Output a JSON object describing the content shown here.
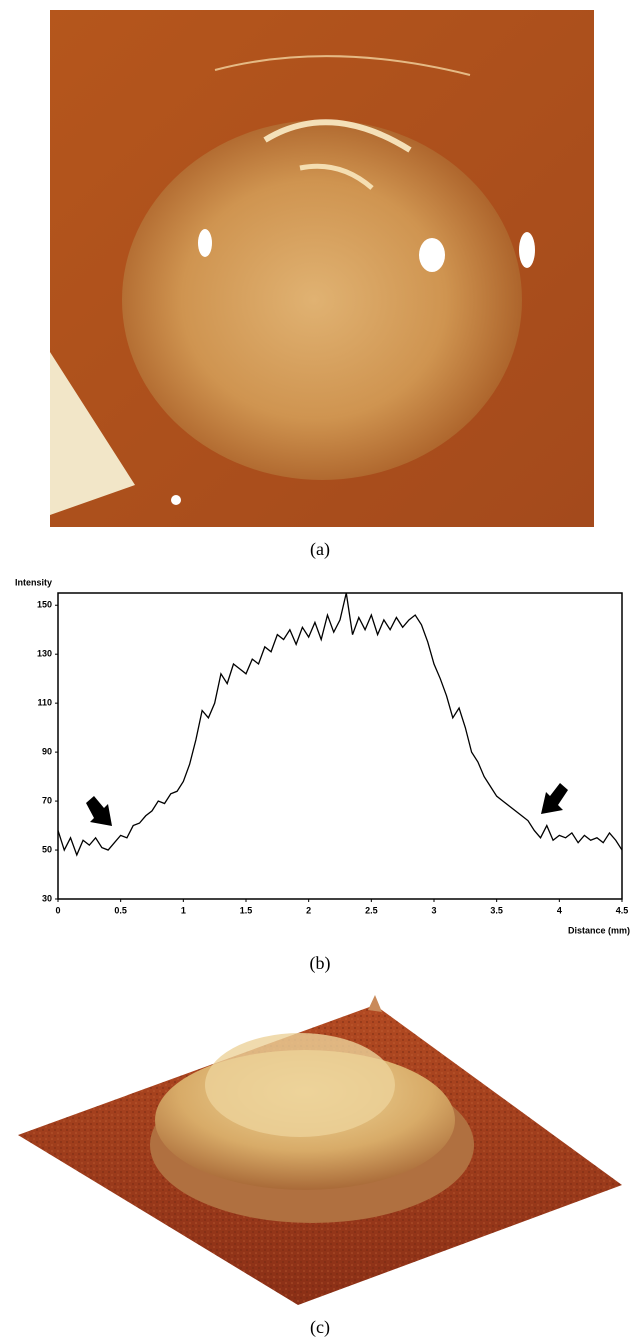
{
  "captions": [
    "(a)",
    "(b)",
    "(c)"
  ],
  "chart_data": {
    "type": "line",
    "ylabel": "Intensity",
    "xlabel": "Distance (mm)",
    "xlim": [
      0,
      4.5
    ],
    "xticks": [
      0,
      0.5,
      1,
      1.5,
      2,
      2.5,
      3,
      3.5,
      4,
      4.5
    ],
    "ylim": [
      30,
      155
    ],
    "yticks": [
      30,
      50,
      70,
      90,
      110,
      130,
      150
    ],
    "color": "#000000",
    "x": [
      0,
      0.05,
      0.1,
      0.15,
      0.2,
      0.25,
      0.3,
      0.35,
      0.4,
      0.45,
      0.5,
      0.55,
      0.6,
      0.65,
      0.7,
      0.75,
      0.8,
      0.85,
      0.9,
      0.95,
      1,
      1.05,
      1.1,
      1.15,
      1.2,
      1.25,
      1.3,
      1.35,
      1.4,
      1.45,
      1.5,
      1.55,
      1.6,
      1.65,
      1.7,
      1.75,
      1.8,
      1.85,
      1.9,
      1.95,
      2,
      2.05,
      2.1,
      2.15,
      2.2,
      2.25,
      2.3,
      2.35,
      2.4,
      2.45,
      2.5,
      2.55,
      2.6,
      2.65,
      2.7,
      2.75,
      2.8,
      2.85,
      2.9,
      2.95,
      3,
      3.05,
      3.1,
      3.15,
      3.2,
      3.25,
      3.3,
      3.35,
      3.4,
      3.45,
      3.5,
      3.55,
      3.6,
      3.65,
      3.7,
      3.75,
      3.8,
      3.85,
      3.9,
      3.95,
      4,
      4.05,
      4.1,
      4.15,
      4.2,
      4.25,
      4.3,
      4.35,
      4.4,
      4.45,
      4.5
    ],
    "values": [
      58,
      50,
      55,
      48,
      54,
      52,
      55,
      51,
      50,
      53,
      56,
      55,
      60,
      61,
      64,
      66,
      70,
      69,
      73,
      74,
      78,
      85,
      95,
      107,
      104,
      110,
      122,
      118,
      126,
      124,
      122,
      128,
      126,
      133,
      131,
      138,
      136,
      140,
      134,
      141,
      137,
      143,
      136,
      146,
      139,
      144,
      155,
      138,
      145,
      140,
      146,
      138,
      144,
      140,
      145,
      141,
      144,
      146,
      142,
      135,
      126,
      120,
      113,
      104,
      108,
      100,
      90,
      86,
      80,
      76,
      72,
      70,
      68,
      66,
      64,
      62,
      58,
      55,
      60,
      54,
      56,
      55,
      57,
      53,
      56,
      54,
      55,
      53,
      57,
      54,
      50
    ]
  }
}
